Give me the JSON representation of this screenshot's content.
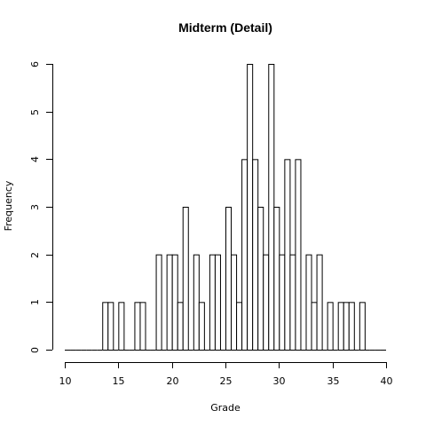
{
  "chart_data": {
    "type": "bar",
    "title": "Midterm (Detail)",
    "xlabel": "Grade",
    "ylabel": "Frequency",
    "xlim": [
      10,
      40
    ],
    "ylim": [
      0,
      6
    ],
    "xticks": [
      "10",
      "15",
      "20",
      "25",
      "30",
      "35",
      "40"
    ],
    "yticks": [
      "0",
      "1",
      "2",
      "3",
      "4",
      "5",
      "6"
    ],
    "bin_width": 0.5,
    "bin_start": 10,
    "counts": [
      0,
      0,
      0,
      0,
      0,
      0,
      0,
      1,
      1,
      0,
      1,
      0,
      0,
      1,
      1,
      0,
      0,
      2,
      0,
      2,
      2,
      1,
      3,
      0,
      2,
      1,
      0,
      2,
      2,
      0,
      3,
      2,
      1,
      4,
      6,
      4,
      3,
      2,
      6,
      3,
      2,
      4,
      2,
      4,
      0,
      2,
      1,
      2,
      0,
      1,
      0,
      1,
      1,
      1,
      0,
      1,
      0,
      0,
      0,
      0
    ]
  }
}
